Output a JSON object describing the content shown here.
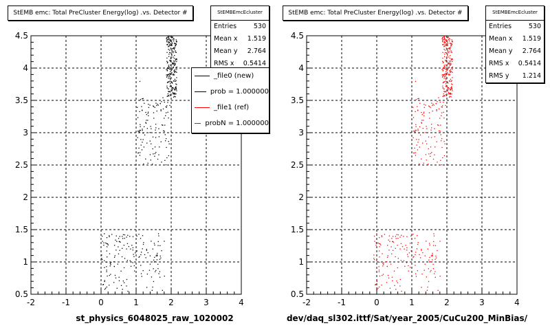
{
  "panels": [
    {
      "title": "StEMB emc: Total PreCluster Energy(log) .vs. Detector #",
      "stats": {
        "name": "StEMBEmcEcluster",
        "rows": [
          {
            "label": "Entries",
            "value": "530"
          },
          {
            "label": "Mean x",
            "value": "1.519"
          },
          {
            "label": "Mean y",
            "value": "2.764"
          },
          {
            "label": "RMS x",
            "value": "0.5414"
          }
        ]
      },
      "legend": [
        {
          "label": "_file0 (new)",
          "color": "#000000"
        },
        {
          "label": "prob = 1.000000",
          "color": "#000000"
        },
        {
          "label": "_file1 (ref)",
          "color": "#ff0000"
        },
        {
          "label": "probN = 1.000000",
          "color": "#ff0000"
        }
      ],
      "xtitle": "st_physics_6048025_raw_1020002"
    },
    {
      "title": "StEMB emc: Total PreCluster Energy(log) .vs. Detector #",
      "stats": {
        "name": "StEMBEmcEcluster",
        "rows": [
          {
            "label": "Entries",
            "value": "530"
          },
          {
            "label": "Mean x",
            "value": "1.519"
          },
          {
            "label": "Mean y",
            "value": "2.764"
          },
          {
            "label": "RMS x",
            "value": "0.5414"
          },
          {
            "label": "RMS y",
            "value": "1.214"
          }
        ]
      },
      "xtitle": "dev/daq_sl302.ittf/Sat/year_2005/CuCu200_MinBias/"
    }
  ],
  "chart_data": [
    {
      "type": "scatter",
      "title": "StEMB emc: Total PreCluster Energy(log) .vs. Detector #",
      "xlabel": "st_physics_6048025_raw_1020002",
      "ylabel": "",
      "xlim": [
        -2,
        4
      ],
      "ylim": [
        0.5,
        4.5
      ],
      "xticks": [
        "-2",
        "-1",
        "0",
        "1",
        "2",
        "3",
        "4"
      ],
      "yticks": [
        "0.5",
        "1",
        "1.5",
        "2",
        "2.5",
        "3",
        "3.5",
        "4",
        "4.5"
      ],
      "grid": true,
      "marker_color": "#000000",
      "entries": 530,
      "clusters": [
        {
          "x": [
            1.85,
            2.15
          ],
          "y": [
            3.55,
            4.5
          ],
          "count": 230
        },
        {
          "x": [
            1.0,
            1.95
          ],
          "y": [
            2.5,
            3.55
          ],
          "count": 120
        },
        {
          "x": [
            0.0,
            1.8
          ],
          "y": [
            0.55,
            1.45
          ],
          "count": 170
        },
        {
          "x": [
            1.05,
            1.1
          ],
          "y": [
            3.8,
            3.8
          ],
          "count": 1
        }
      ]
    },
    {
      "type": "scatter",
      "title": "StEMB emc: Total PreCluster Energy(log) .vs. Detector #",
      "xlabel": "dev/daq_sl302.ittf/Sat/year_2005/CuCu200_MinBias/",
      "ylabel": "",
      "xlim": [
        -2,
        4
      ],
      "ylim": [
        0.5,
        4.5
      ],
      "xticks": [
        "-2",
        "-1",
        "0",
        "1",
        "2",
        "3",
        "4"
      ],
      "yticks": [
        "0.5",
        "1",
        "1.5",
        "2",
        "2.5",
        "3",
        "3.5",
        "4",
        "4.5"
      ],
      "grid": true,
      "marker_color": "#ff0000",
      "entries": 530,
      "clusters": [
        {
          "x": [
            1.85,
            2.15
          ],
          "y": [
            3.55,
            4.5
          ],
          "count": 230
        },
        {
          "x": [
            1.0,
            1.95
          ],
          "y": [
            2.5,
            3.55
          ],
          "count": 120
        },
        {
          "x": [
            -0.1,
            1.8
          ],
          "y": [
            0.55,
            1.45
          ],
          "count": 170
        },
        {
          "x": [
            1.05,
            1.1
          ],
          "y": [
            3.8,
            3.8
          ],
          "count": 1
        }
      ]
    }
  ]
}
